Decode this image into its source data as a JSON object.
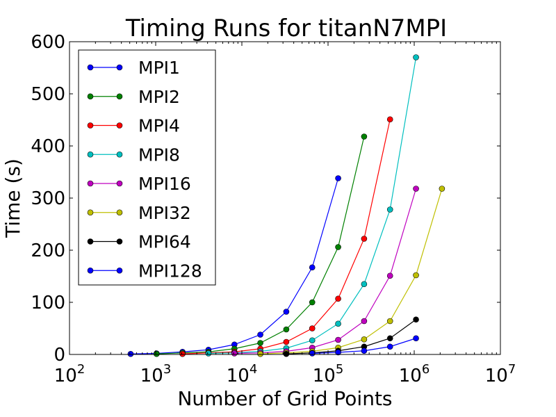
{
  "chart_data": {
    "type": "line",
    "title": "Timing Runs for titanN7MPI",
    "xlabel": "Number of Grid Points",
    "ylabel": "Time (s)",
    "xscale": "log",
    "xlim": [
      100,
      10000000
    ],
    "ylim": [
      0,
      600
    ],
    "yticks": [
      "0",
      "100",
      "200",
      "300",
      "400",
      "500",
      "600"
    ],
    "xticks": [
      {
        "base": "10",
        "exp": "2"
      },
      {
        "base": "10",
        "exp": "3"
      },
      {
        "base": "10",
        "exp": "4"
      },
      {
        "base": "10",
        "exp": "5"
      },
      {
        "base": "10",
        "exp": "6"
      },
      {
        "base": "10",
        "exp": "7"
      }
    ],
    "grid": false,
    "legend_position": "upper-left",
    "series": [
      {
        "name": "MPI1",
        "color": "#0000ff",
        "x": [
          512,
          1024,
          2048,
          4096,
          8192,
          16384,
          32768,
          65536,
          131072
        ],
        "y": [
          1,
          2,
          5,
          9,
          19,
          38,
          82,
          167,
          338
        ]
      },
      {
        "name": "MPI2",
        "color": "#008000",
        "x": [
          1024,
          2048,
          4096,
          8192,
          16384,
          32768,
          65536,
          131072,
          262144
        ],
        "y": [
          1,
          3,
          5,
          11,
          22,
          48,
          100,
          206,
          418
        ]
      },
      {
        "name": "MPI4",
        "color": "#ff0000",
        "x": [
          2048,
          4096,
          8192,
          16384,
          32768,
          65536,
          131072,
          262144,
          524288
        ],
        "y": [
          1,
          3,
          5,
          11,
          24,
          50,
          107,
          222,
          451
        ]
      },
      {
        "name": "MPI8",
        "color": "#00bfbf",
        "x": [
          4096,
          8192,
          16384,
          32768,
          65536,
          131072,
          262144,
          524288,
          1048576
        ],
        "y": [
          2,
          3,
          6,
          12,
          27,
          59,
          135,
          278,
          570
        ]
      },
      {
        "name": "MPI16",
        "color": "#bf00bf",
        "x": [
          8192,
          16384,
          32768,
          65536,
          131072,
          262144,
          524288,
          1048576
        ],
        "y": [
          2,
          3,
          6,
          13,
          28,
          64,
          151,
          318
        ]
      },
      {
        "name": "MPI32",
        "color": "#bfbf00",
        "x": [
          16384,
          32768,
          65536,
          131072,
          262144,
          524288,
          1048576,
          2097152
        ],
        "y": [
          1,
          3,
          6,
          13,
          29,
          64,
          152,
          318
        ]
      },
      {
        "name": "MPI64",
        "color": "#000000",
        "x": [
          32768,
          65536,
          131072,
          262144,
          524288,
          1048576
        ],
        "y": [
          1,
          3,
          7,
          15,
          31,
          67
        ]
      },
      {
        "name": "MPI128",
        "color": "#0000ff",
        "x": [
          65536,
          131072,
          262144,
          524288,
          1048576
        ],
        "y": [
          2,
          4,
          7,
          15,
          31
        ]
      }
    ]
  }
}
